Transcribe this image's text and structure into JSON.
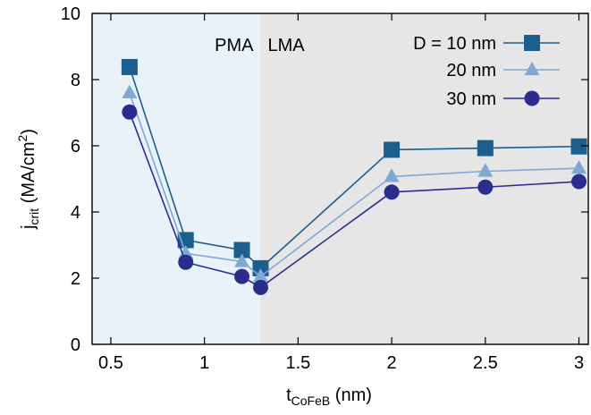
{
  "chart_data": {
    "type": "line",
    "xlabel": {
      "main": "t",
      "sub": "CoFeB",
      "unit": " (nm)"
    },
    "ylabel": {
      "main": "j",
      "sub": "crit",
      "unit_pre": " (MA/cm",
      "unit_sup": "2",
      "unit_post": ")"
    },
    "xlim": [
      0.4,
      3.05
    ],
    "ylim": [
      0,
      10
    ],
    "x_ticks": [
      {
        "value": 0.5,
        "label": "0.5"
      },
      {
        "value": 1,
        "label": "1"
      },
      {
        "value": 1.5,
        "label": "1.5"
      },
      {
        "value": 2,
        "label": "2"
      },
      {
        "value": 2.5,
        "label": "2.5"
      },
      {
        "value": 3,
        "label": "3"
      }
    ],
    "y_ticks": [
      {
        "value": 0,
        "label": "0"
      },
      {
        "value": 2,
        "label": "2"
      },
      {
        "value": 4,
        "label": "4"
      },
      {
        "value": 6,
        "label": "6"
      },
      {
        "value": 8,
        "label": "8"
      },
      {
        "value": 10,
        "label": "10"
      }
    ],
    "regions": [
      {
        "label": "PMA",
        "x_from": 0.4,
        "x_to": 1.3,
        "color": "#e9f1f9"
      },
      {
        "label": "LMA",
        "x_from": 1.3,
        "x_to": 3.05,
        "color": "#e6e6e6"
      }
    ],
    "legend_position": "top-right",
    "series": [
      {
        "name": "D = 10 nm",
        "color": "#1b5f8c",
        "marker": "square",
        "x": [
          0.6,
          0.9,
          1.2,
          1.3,
          2.0,
          2.5,
          3.0
        ],
        "y": [
          8.38,
          3.15,
          2.85,
          2.3,
          5.88,
          5.93,
          5.98
        ]
      },
      {
        "name": "20 nm",
        "color": "#7fa9d3",
        "marker": "triangle",
        "x": [
          0.6,
          0.9,
          1.2,
          1.3,
          2.0,
          2.5,
          3.0
        ],
        "y": [
          7.6,
          2.75,
          2.5,
          2.05,
          5.07,
          5.23,
          5.32
        ]
      },
      {
        "name": "30 nm",
        "color": "#2b2d8e",
        "marker": "circle",
        "x": [
          0.6,
          0.9,
          1.2,
          1.3,
          2.0,
          2.5,
          3.0
        ],
        "y": [
          7.02,
          2.48,
          2.05,
          1.72,
          4.6,
          4.75,
          4.92
        ]
      }
    ]
  }
}
